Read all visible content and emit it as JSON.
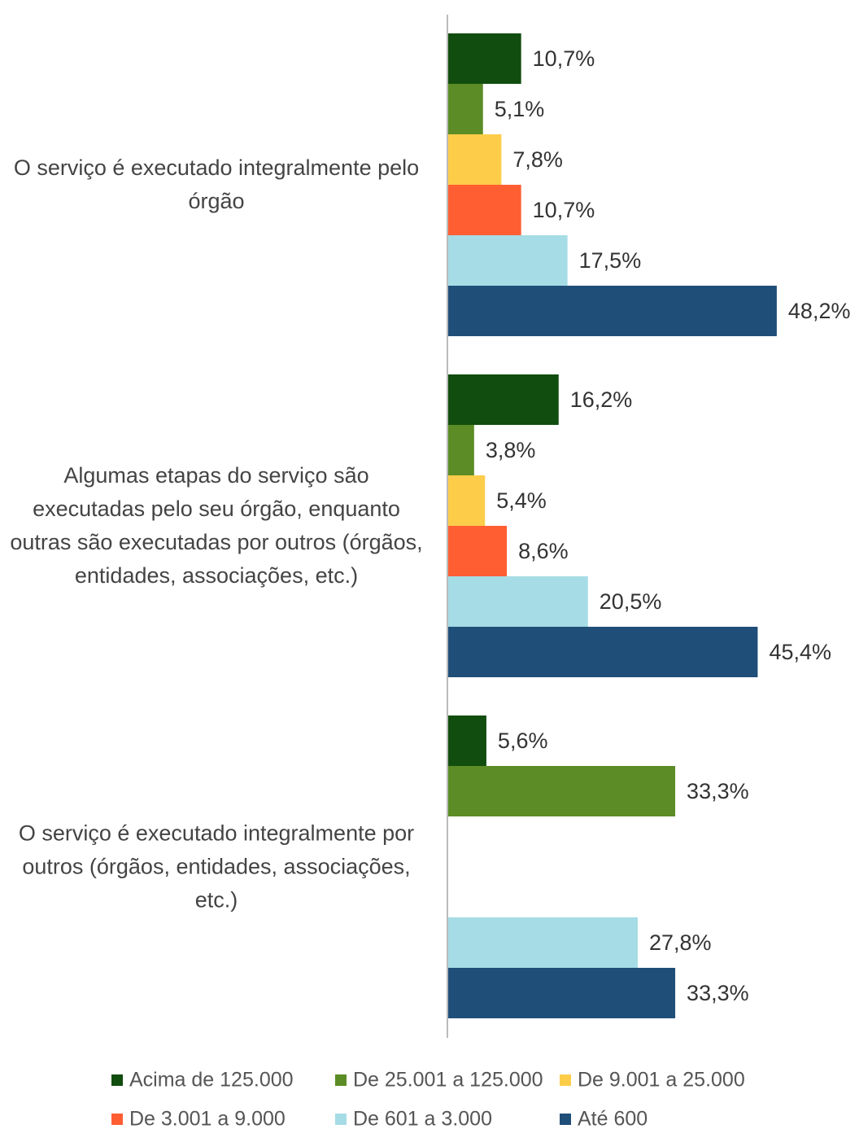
{
  "chart_data": {
    "type": "bar",
    "orientation": "horizontal",
    "categories": [
      "O serviço é executado integralmente pelo órgão",
      "Algumas etapas do serviço são executadas pelo seu órgão, enquanto outras são executadas por outros (órgãos, entidades, associações, etc.)",
      "O serviço é executado integralmente por outros (órgãos, entidades, associações, etc.)"
    ],
    "series": [
      {
        "name": "Acima de 125.000",
        "color": "#114d0e",
        "values": [
          10.7,
          16.2,
          5.6
        ],
        "value_labels": [
          "10,7%",
          "16,2%",
          "5,6%"
        ]
      },
      {
        "name": "De 25.001 a 125.000",
        "color": "#5b8c25",
        "values": [
          5.1,
          3.8,
          33.3
        ],
        "value_labels": [
          "5,1%",
          "3,8%",
          "33,3%"
        ]
      },
      {
        "name": "De 9.001 a 25.000",
        "color": "#fdcd4a",
        "values": [
          7.8,
          5.4,
          null
        ],
        "value_labels": [
          "7,8%",
          "5,4%",
          null
        ]
      },
      {
        "name": "De 3.001 a 9.000",
        "color": "#ff5e33",
        "values": [
          10.7,
          8.6,
          null
        ],
        "value_labels": [
          "10,7%",
          "8,6%",
          null
        ]
      },
      {
        "name": "De 601 a 3.000",
        "color": "#a6dce6",
        "values": [
          17.5,
          20.5,
          27.8
        ],
        "value_labels": [
          "17,5%",
          "20,5%",
          "27,8%"
        ]
      },
      {
        "name": "Até 600",
        "color": "#1f4e79",
        "values": [
          48.2,
          45.4,
          33.3
        ],
        "value_labels": [
          "48,2%",
          "45,4%",
          "33,3%"
        ]
      }
    ],
    "legend": "bottom"
  }
}
